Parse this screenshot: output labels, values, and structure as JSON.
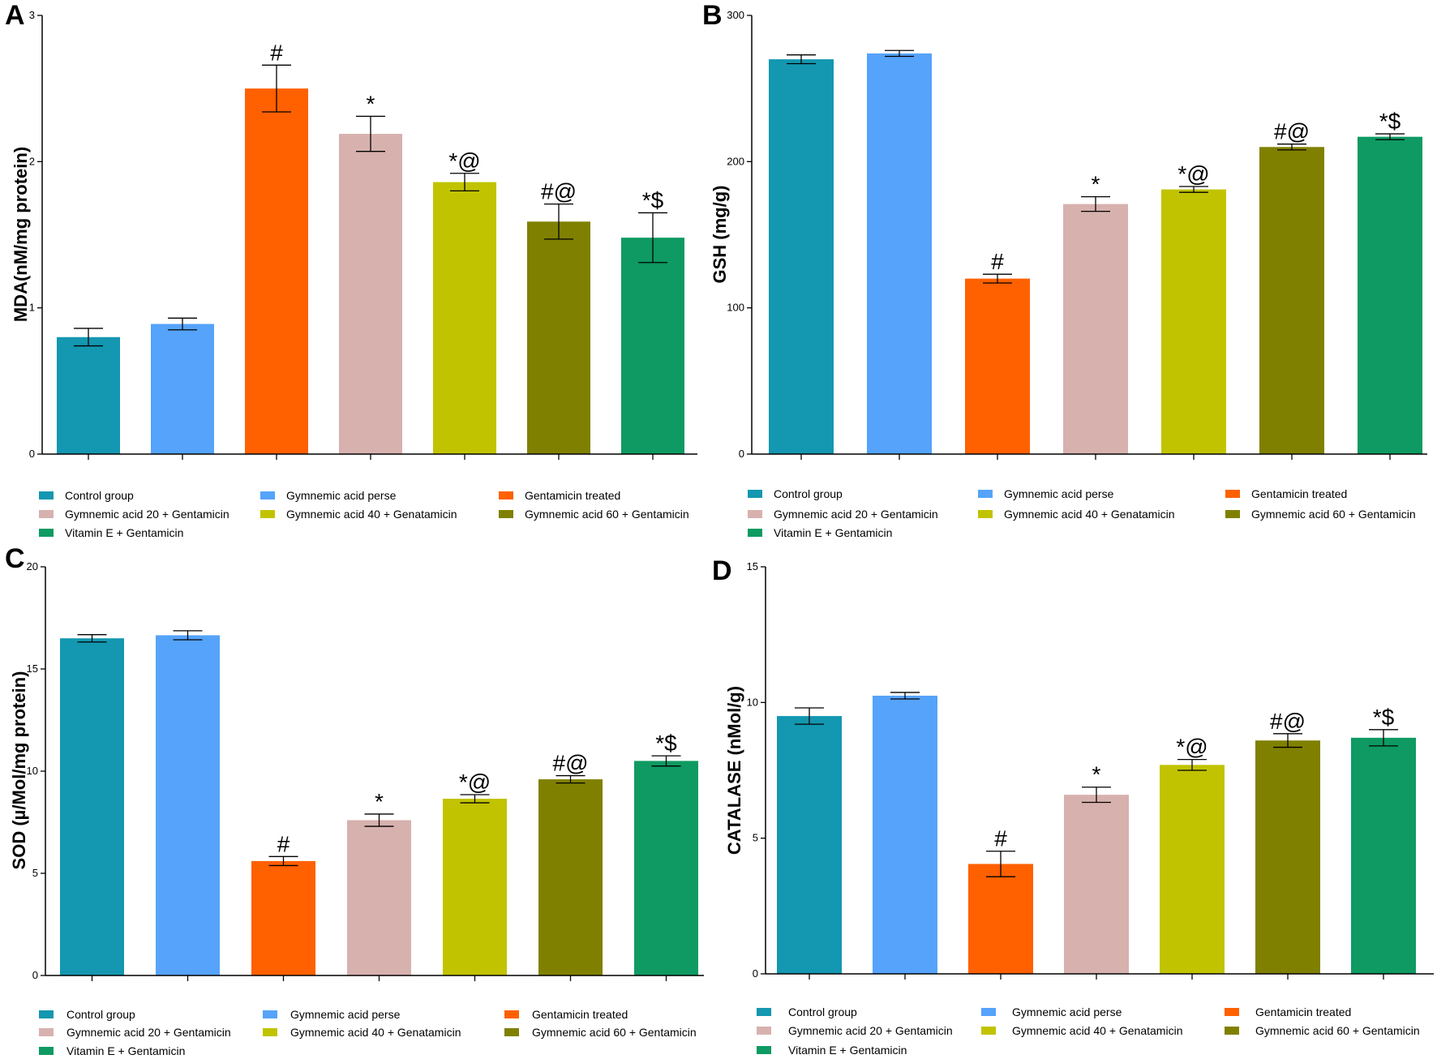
{
  "chart_data": [
    {
      "panel": "A",
      "type": "bar",
      "ylabel": "MDA(nM/mg protein)",
      "ylim": [
        0,
        3
      ],
      "yticks": [
        0,
        1,
        2,
        3
      ],
      "categories": [
        "Control group",
        "Gymnemic acid perse",
        "Gentamicin treated",
        "Gymnemic acid 20 + Gentamicin",
        "Gymnemic acid 40 + Genatamicin",
        "Gymnemic acid 60 + Gentamicin",
        "Vitamin E + Gentamicin"
      ],
      "values": [
        0.8,
        0.89,
        2.5,
        2.19,
        1.86,
        1.59,
        1.48
      ],
      "errors": [
        0.06,
        0.04,
        0.16,
        0.12,
        0.06,
        0.12,
        0.17
      ],
      "annotations": [
        "",
        "",
        "#",
        "*",
        "*@",
        "#@",
        "*$"
      ]
    },
    {
      "panel": "B",
      "type": "bar",
      "ylabel": "GSH (mg/g)",
      "ylim": [
        0,
        300
      ],
      "yticks": [
        0,
        100,
        200,
        300
      ],
      "categories": [
        "Control group",
        "Gymnemic acid perse",
        "Gentamicin treated",
        "Gymnemic acid 20 + Gentamicin",
        "Gymnemic acid 40 + Genatamicin",
        "Gymnemic acid 60 + Gentamicin",
        "Vitamin E + Gentamicin"
      ],
      "values": [
        270,
        274,
        120,
        171,
        181,
        210,
        217
      ],
      "errors": [
        3,
        2,
        3,
        5,
        2,
        2,
        2
      ],
      "annotations": [
        "",
        "",
        "#",
        "*",
        "*@",
        "#@",
        "*$"
      ]
    },
    {
      "panel": "C",
      "type": "bar",
      "ylabel": "SOD (µ/Mol/mg protein)",
      "ylim": [
        0,
        20
      ],
      "yticks": [
        0,
        5,
        10,
        15,
        20
      ],
      "categories": [
        "Control group",
        "Gymnemic acid perse",
        "Gentamicin treated",
        "Gymnemic acid 20 + Gentamicin",
        "Gymnemic acid 40 + Genatamicin",
        "Gymnemic acid 60 + Gentamicin",
        "Vitamin E + Gentamicin"
      ],
      "values": [
        16.5,
        16.65,
        5.6,
        7.6,
        8.65,
        9.6,
        10.5
      ],
      "errors": [
        0.18,
        0.22,
        0.22,
        0.3,
        0.2,
        0.18,
        0.25
      ],
      "annotations": [
        "",
        "",
        "#",
        "*",
        "*@",
        "#@",
        "*$"
      ]
    },
    {
      "panel": "D",
      "type": "bar",
      "ylabel": "CATALASE (nMol/g)",
      "ylim": [
        0,
        15
      ],
      "yticks": [
        0,
        5,
        10,
        15
      ],
      "categories": [
        "Control group",
        "Gymnemic acid perse",
        "Gentamicin treated",
        "Gymnemic acid 20 + Gentamicin",
        "Gymnemic acid 40 + Genatamicin",
        "Gymnemic acid 60 + Gentamicin",
        "Vitamin E + Gentamicin"
      ],
      "values": [
        9.5,
        10.25,
        4.05,
        6.6,
        7.7,
        8.6,
        8.7
      ],
      "errors": [
        0.3,
        0.12,
        0.47,
        0.28,
        0.2,
        0.25,
        0.3
      ],
      "annotations": [
        "",
        "",
        "#",
        "*",
        "*@",
        "#@",
        "*$"
      ]
    }
  ],
  "colors": [
    "#1497b0",
    "#55a3fa",
    "#ff6000",
    "#d7b1ae",
    "#c1c300",
    "#808000",
    "#0e9a62"
  ],
  "legend_order": [
    0,
    1,
    2,
    3,
    4,
    5,
    6
  ]
}
